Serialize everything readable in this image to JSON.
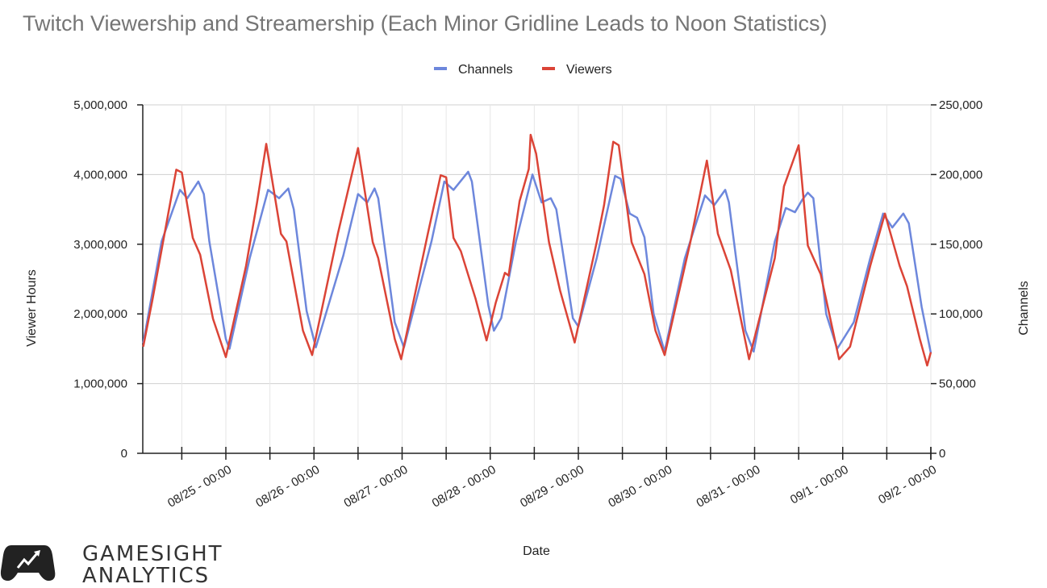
{
  "chart_data": {
    "type": "line",
    "title": "Twitch Viewership and Streamership (Each Minor Gridline Leads to Noon Statistics)",
    "xlabel": "Date",
    "ylabel_left": "Viewer Hours",
    "ylabel_right": "Channels",
    "ylim_left": [
      0,
      5000000
    ],
    "ylim_right": [
      0,
      250000
    ],
    "yticks_left": [
      "0",
      "1,000,000",
      "2,000,000",
      "3,000,000",
      "4,000,000",
      "5,000,000"
    ],
    "yticks_right": [
      "0",
      "50,000",
      "100,000",
      "150,000",
      "200,000",
      "250,000"
    ],
    "xticks": [
      "08/25 - 00:00",
      "08/26 - 00:00",
      "08/27 - 00:00",
      "08/28 - 00:00",
      "08/29 - 00:00",
      "08/30 - 00:00",
      "08/31 - 00:00",
      "09/1 - 00:00",
      "09/2 - 00:00"
    ],
    "grid": true,
    "legend": "top",
    "series": [
      {
        "name": "Channels",
        "axis": "right",
        "color": "#6d87dc",
        "points": [
          [
            "08/24 01:30",
            79000
          ],
          [
            "08/24 06:30",
            152000
          ],
          [
            "08/24 11:30",
            189000
          ],
          [
            "08/24 13:30",
            183000
          ],
          [
            "08/24 16:30",
            195000
          ],
          [
            "08/24 18:00",
            186000
          ],
          [
            "08/24 19:30",
            152000
          ],
          [
            "08/25 00:00",
            82000
          ],
          [
            "08/25 01:00",
            75000
          ],
          [
            "08/25 06:30",
            140000
          ],
          [
            "08/25 11:30",
            189000
          ],
          [
            "08/25 14:30",
            183000
          ],
          [
            "08/25 17:00",
            190000
          ],
          [
            "08/25 18:30",
            175000
          ],
          [
            "08/25 22:00",
            102000
          ],
          [
            "08/26 00:30",
            76000
          ],
          [
            "08/26 08:00",
            142000
          ],
          [
            "08/26 12:00",
            186000
          ],
          [
            "08/26 14:30",
            180000
          ],
          [
            "08/26 16:30",
            190000
          ],
          [
            "08/26 17:30",
            183000
          ],
          [
            "08/26 22:00",
            94000
          ],
          [
            "08/27 00:30",
            76000
          ],
          [
            "08/27 08:00",
            152000
          ],
          [
            "08/27 11:30",
            195000
          ],
          [
            "08/27 14:00",
            189000
          ],
          [
            "08/27 18:00",
            202000
          ],
          [
            "08/27 19:00",
            195000
          ],
          [
            "08/27 23:30",
            106000
          ],
          [
            "08/28 01:00",
            88000
          ],
          [
            "08/28 03:00",
            97000
          ],
          [
            "08/28 07:00",
            152000
          ],
          [
            "08/28 11:30",
            200000
          ],
          [
            "08/28 14:00",
            180000
          ],
          [
            "08/28 16:30",
            183000
          ],
          [
            "08/28 18:00",
            175000
          ],
          [
            "08/28 22:30",
            97000
          ],
          [
            "08/29 00:00",
            91000
          ],
          [
            "08/29 05:00",
            140000
          ],
          [
            "08/29 10:00",
            199000
          ],
          [
            "08/29 11:30",
            197000
          ],
          [
            "08/29 14:00",
            172000
          ],
          [
            "08/29 16:00",
            169000
          ],
          [
            "08/29 18:00",
            155000
          ],
          [
            "08/29 20:30",
            100000
          ],
          [
            "08/29 23:30",
            73000
          ],
          [
            "08/30 05:00",
            140000
          ],
          [
            "08/30 10:30",
            185000
          ],
          [
            "08/30 13:00",
            178000
          ],
          [
            "08/30 16:00",
            189000
          ],
          [
            "08/30 17:00",
            180000
          ],
          [
            "08/30 21:30",
            88000
          ],
          [
            "08/30 23:45",
            73000
          ],
          [
            "08/31 05:30",
            152000
          ],
          [
            "08/31 08:30",
            176000
          ],
          [
            "08/31 11:00",
            173000
          ],
          [
            "08/31 13:00",
            182000
          ],
          [
            "08/31 14:30",
            187000
          ],
          [
            "08/31 16:00",
            183000
          ],
          [
            "08/31 19:30",
            100000
          ],
          [
            "08/31 22:30",
            75000
          ],
          [
            "09/1 03:00",
            94000
          ],
          [
            "09/1 07:30",
            140000
          ],
          [
            "09/1 11:00",
            172000
          ],
          [
            "09/1 13:30",
            162000
          ],
          [
            "09/1 16:30",
            172000
          ],
          [
            "09/1 18:00",
            165000
          ],
          [
            "09/1 21:30",
            105000
          ],
          [
            "09/2 00:00",
            72000
          ]
        ]
      },
      {
        "name": "Viewers",
        "axis": "left",
        "color": "#db4437",
        "points": [
          [
            "08/24 01:30",
            1530000
          ],
          [
            "08/24 04:00",
            2200000
          ],
          [
            "08/24 10:30",
            4070000
          ],
          [
            "08/24 12:00",
            4030000
          ],
          [
            "08/24 15:00",
            3090000
          ],
          [
            "08/24 17:00",
            2850000
          ],
          [
            "08/24 20:30",
            1930000
          ],
          [
            "08/25 00:00",
            1380000
          ],
          [
            "08/25 05:30",
            2690000
          ],
          [
            "08/25 08:30",
            3600000
          ],
          [
            "08/25 11:00",
            4440000
          ],
          [
            "08/25 15:00",
            3150000
          ],
          [
            "08/25 16:30",
            3040000
          ],
          [
            "08/25 21:00",
            1760000
          ],
          [
            "08/25 23:30",
            1410000
          ],
          [
            "08/26 06:30",
            3150000
          ],
          [
            "08/26 12:00",
            4380000
          ],
          [
            "08/26 16:00",
            3030000
          ],
          [
            "08/26 17:30",
            2800000
          ],
          [
            "08/26 22:00",
            1640000
          ],
          [
            "08/26 23:45",
            1350000
          ],
          [
            "08/27 07:00",
            3150000
          ],
          [
            "08/27 10:30",
            3990000
          ],
          [
            "08/27 12:00",
            3960000
          ],
          [
            "08/27 14:00",
            3090000
          ],
          [
            "08/27 16:00",
            2900000
          ],
          [
            "08/27 20:00",
            2220000
          ],
          [
            "08/27 23:00",
            1620000
          ],
          [
            "08/28 01:30",
            2160000
          ],
          [
            "08/28 04:00",
            2590000
          ],
          [
            "08/28 05:00",
            2550000
          ],
          [
            "08/28 08:00",
            3620000
          ],
          [
            "08/28 10:30",
            4080000
          ],
          [
            "08/28 11:00",
            4570000
          ],
          [
            "08/28 12:30",
            4300000
          ],
          [
            "08/28 16:00",
            3030000
          ],
          [
            "08/28 19:00",
            2340000
          ],
          [
            "08/28 23:00",
            1590000
          ],
          [
            "08/29 05:00",
            3030000
          ],
          [
            "08/29 07:00",
            3560000
          ],
          [
            "08/29 09:30",
            4470000
          ],
          [
            "08/29 11:00",
            4420000
          ],
          [
            "08/29 14:30",
            3030000
          ],
          [
            "08/29 18:00",
            2570000
          ],
          [
            "08/29 21:00",
            1760000
          ],
          [
            "08/29 23:30",
            1410000
          ],
          [
            "08/30 06:30",
            3030000
          ],
          [
            "08/30 11:00",
            4200000
          ],
          [
            "08/30 14:00",
            3150000
          ],
          [
            "08/30 17:30",
            2630000
          ],
          [
            "08/30 22:30",
            1350000
          ],
          [
            "08/31 05:30",
            2800000
          ],
          [
            "08/31 08:00",
            3830000
          ],
          [
            "08/31 12:00",
            4420000
          ],
          [
            "08/31 14:30",
            2980000
          ],
          [
            "08/31 18:00",
            2570000
          ],
          [
            "08/31 23:00",
            1350000
          ],
          [
            "09/1 02:00",
            1530000
          ],
          [
            "09/1 07:30",
            2690000
          ],
          [
            "09/1 11:30",
            3440000
          ],
          [
            "09/1 15:30",
            2690000
          ],
          [
            "09/1 17:30",
            2400000
          ],
          [
            "09/1 21:00",
            1640000
          ],
          [
            "09/1 23:00",
            1260000
          ],
          [
            "09/2 00:00",
            1450000
          ]
        ]
      }
    ]
  },
  "logo": {
    "line1": "GAMESIGHT",
    "line2": "ANALYTICS"
  }
}
